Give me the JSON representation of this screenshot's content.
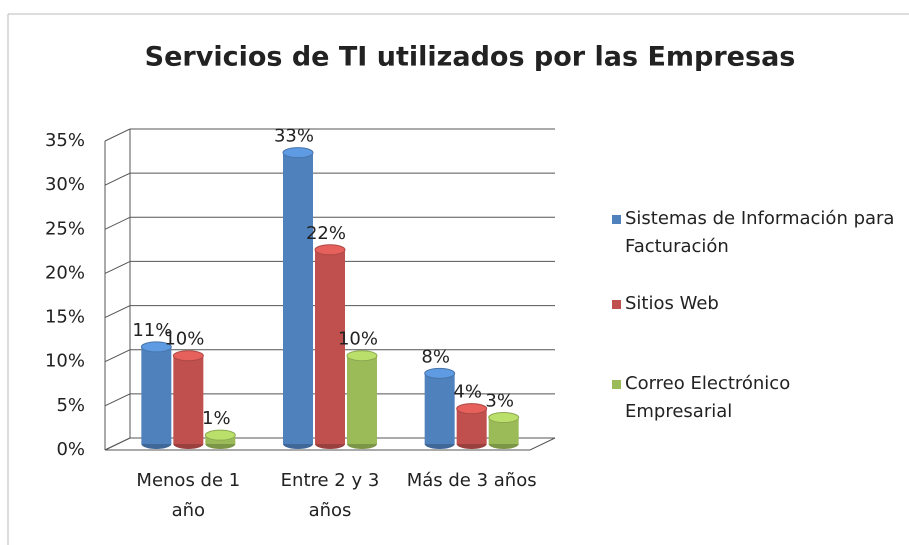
{
  "chart_data": {
    "type": "bar3d",
    "title": "Servicios de TI utilizados por las Empresas",
    "categories": [
      "Menos de 1 año",
      "Entre 2 y 3 años",
      "Más de 3 años"
    ],
    "series": [
      {
        "name": "Sistemas de Información para Facturación",
        "color": "#4f81bd",
        "values": [
          11,
          33,
          8
        ],
        "value_labels": [
          "11%",
          "33%",
          "8%"
        ]
      },
      {
        "name": "Sitios Web",
        "color": "#c0504d",
        "values": [
          10,
          22,
          4
        ],
        "value_labels": [
          "10%",
          "22%",
          "4%"
        ]
      },
      {
        "name": "Correo Electrónico Empresarial",
        "color": "#9bbb59",
        "values": [
          1,
          10,
          3
        ],
        "value_labels": [
          "1%",
          "10%",
          "3%"
        ]
      }
    ],
    "ylim": [
      0,
      35
    ],
    "yticks": [
      {
        "value": 0,
        "label": "0%"
      },
      {
        "value": 5,
        "label": "5%"
      },
      {
        "value": 10,
        "label": "10%"
      },
      {
        "value": 15,
        "label": "15%"
      },
      {
        "value": 20,
        "label": "20%"
      },
      {
        "value": 25,
        "label": "25%"
      },
      {
        "value": 30,
        "label": "30%"
      },
      {
        "value": 35,
        "label": "35%"
      }
    ],
    "grid": true,
    "legend": "right"
  }
}
